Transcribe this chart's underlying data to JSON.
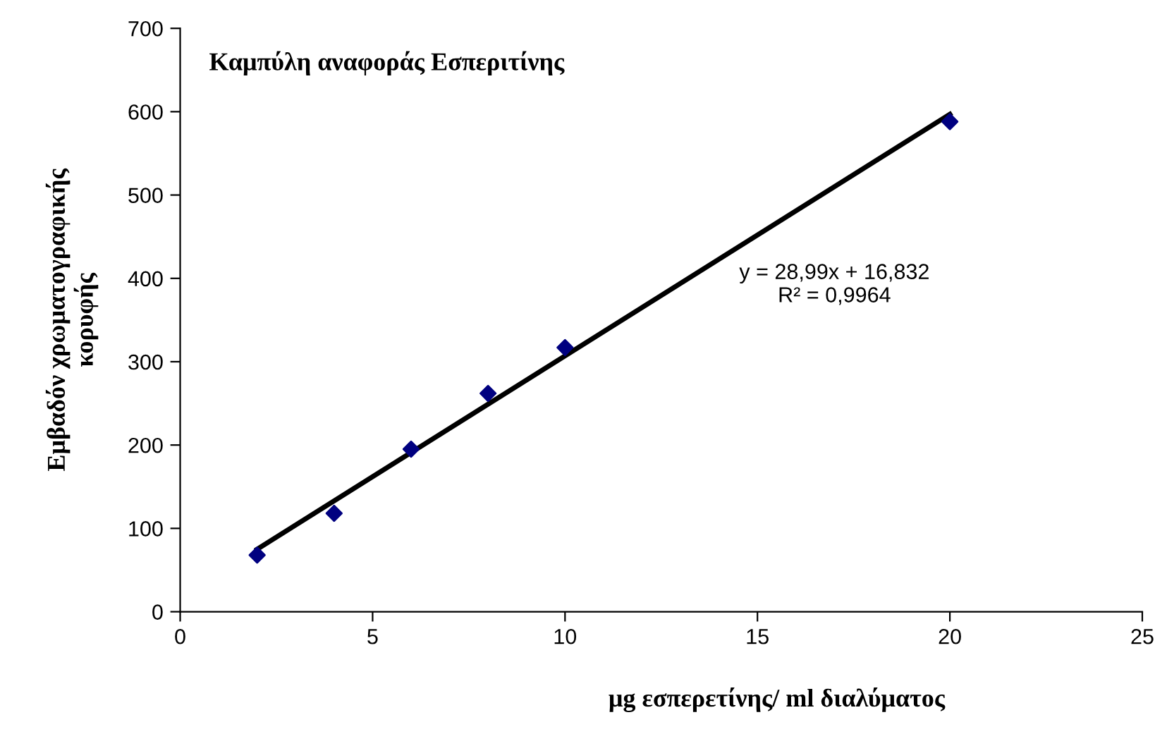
{
  "chart_data": {
    "type": "scatter",
    "title": "Καμπύλη αναφοράς Εσπεριτίνης",
    "xlabel": "μg εσπερετίνης/ ml διαλύματος",
    "ylabel": "Εμβαδόν χρωματογραφικής\nκορυφής",
    "x": [
      2,
      4,
      6,
      8,
      10,
      20
    ],
    "series": [
      {
        "color": "#000080",
        "marker": "diamond",
        "values": [
          68,
          118,
          195,
          262,
          317,
          588
        ]
      },
      {
        "type": "line",
        "color": "#000000",
        "marker": "none",
        "line_style": "solid",
        "x": [
          2,
          20
        ],
        "values": [
          75,
          597
        ]
      }
    ],
    "annotations": [
      "y = 28,99x + 16,832\nR² = 0,9964"
    ],
    "xlim": [
      0,
      25
    ],
    "xticks": [
      0,
      5,
      10,
      15,
      20,
      25
    ],
    "ylim": [
      0,
      700
    ],
    "yticks": [
      0,
      100,
      200,
      300,
      400,
      500,
      600,
      700
    ],
    "grid": false,
    "legend": false
  }
}
